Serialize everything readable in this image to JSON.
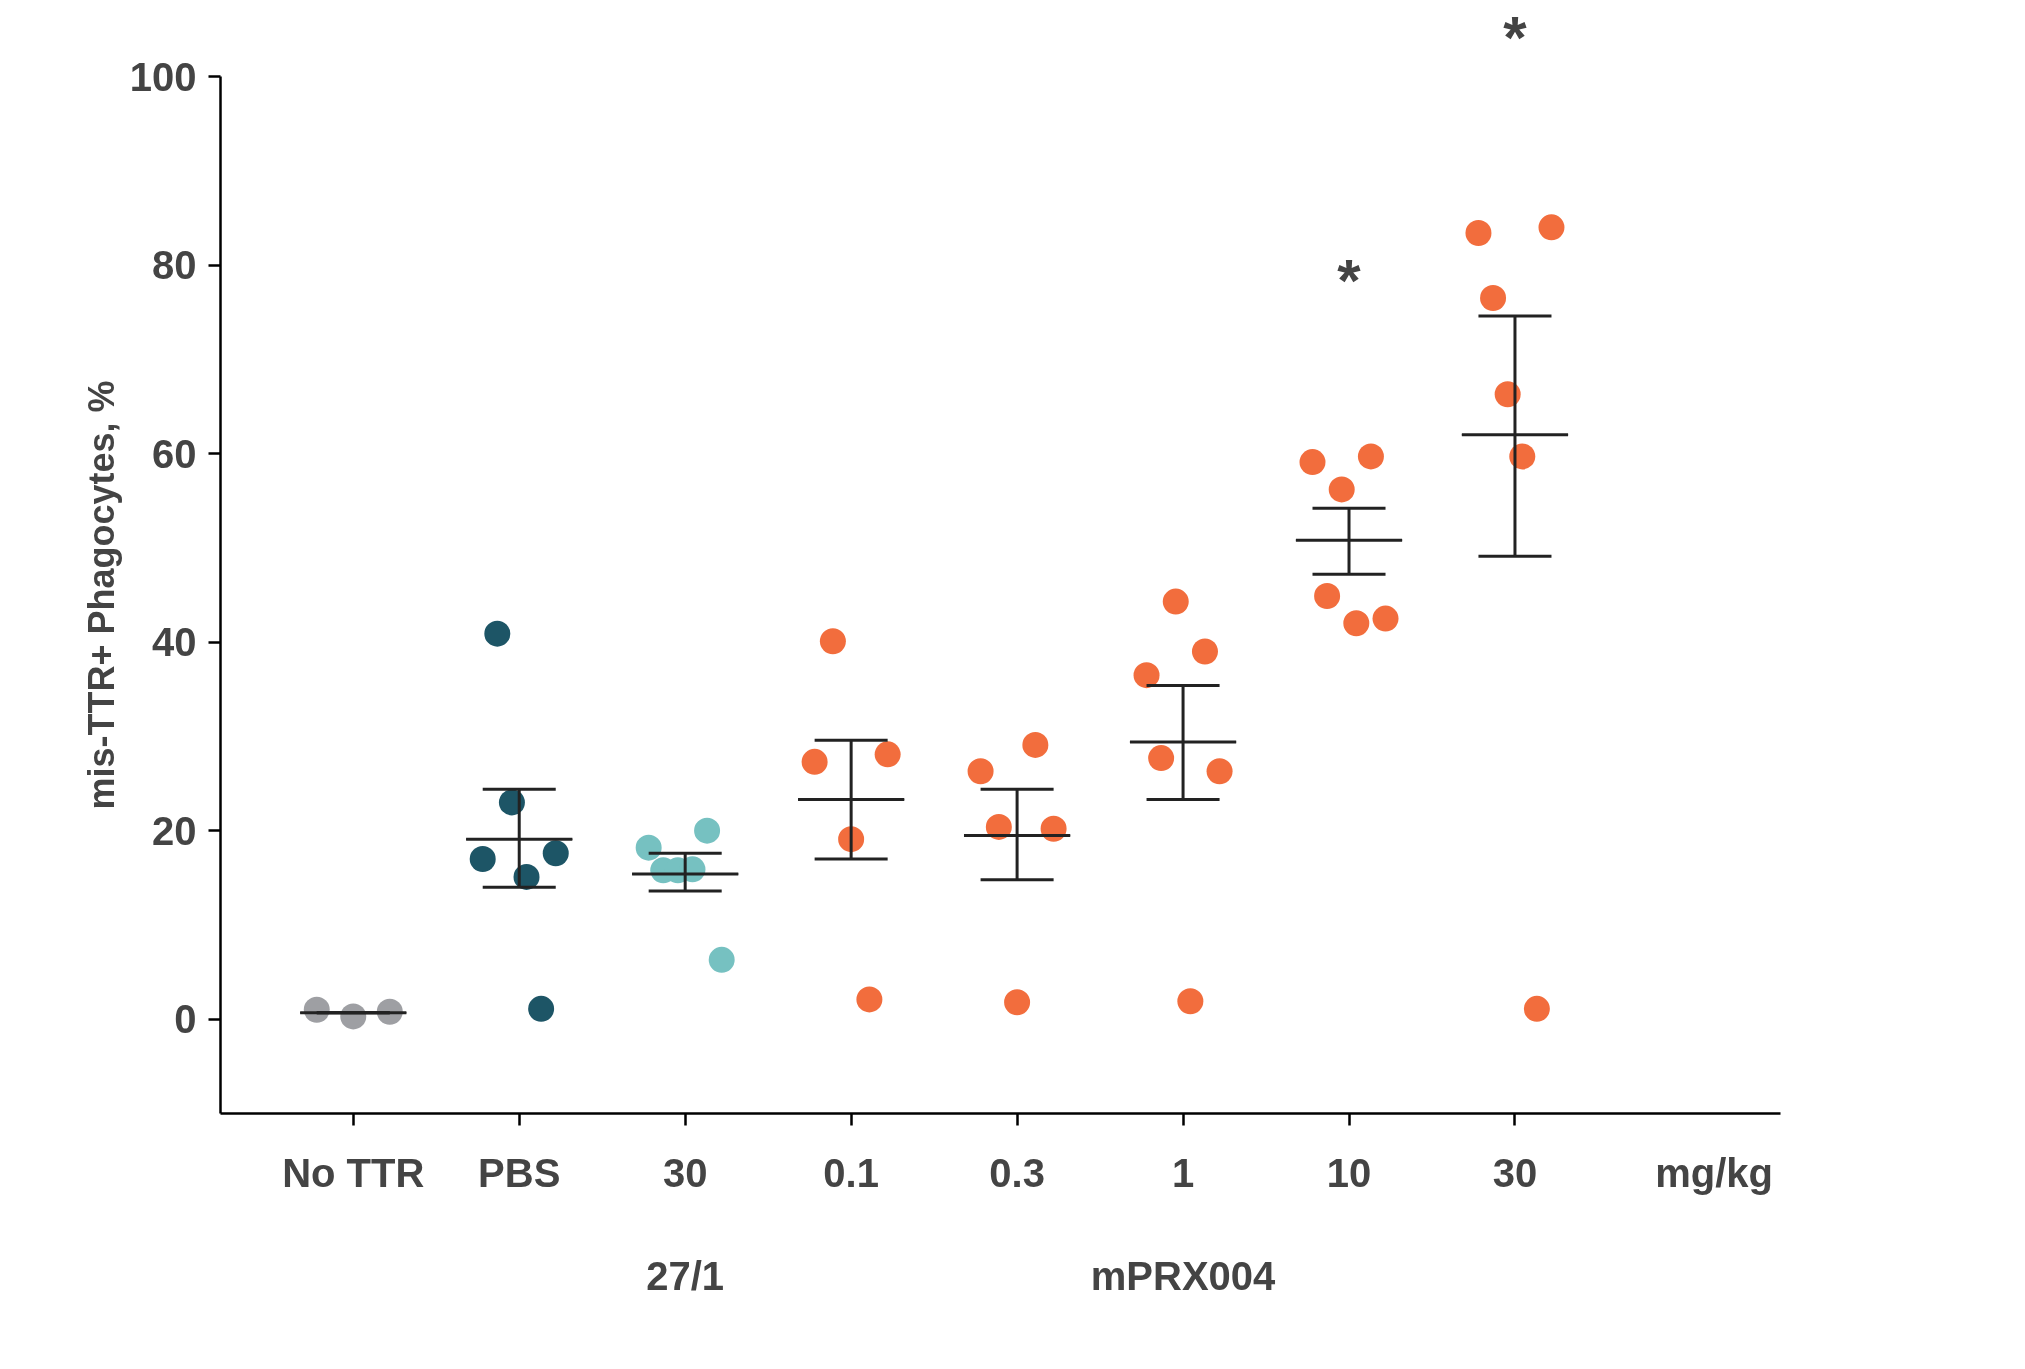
{
  "chart_data": {
    "type": "scatter",
    "ylabel": "mis-TTR+ Phagocytes, %",
    "categories": [
      "No TTR",
      "PBS",
      "30",
      "0.1",
      "0.3",
      "1",
      "10",
      "30"
    ],
    "ylim": [
      -10,
      100
    ],
    "yticks": [
      0,
      20,
      40,
      60,
      80,
      100
    ],
    "grid": false,
    "legend": false,
    "marker": "circle",
    "series": [
      {
        "colors": [
          "#9e9fa3",
          "#1d5566",
          "#76c1c1",
          "#f26d3d",
          "#f26d3d",
          "#f26d3d",
          "#f26d3d",
          "#f26d3d"
        ],
        "values": [
          1.0,
          17.0,
          18.2,
          27.3,
          26.3,
          36.5,
          59.1,
          83.4
        ]
      },
      {
        "colors": [
          "#9e9fa3",
          "#1d5566",
          "#76c1c1",
          "#f26d3d",
          "#f26d3d",
          "#f26d3d",
          "#f26d3d",
          "#f26d3d"
        ],
        "values": [
          0.3,
          40.9,
          15.8,
          40.1,
          20.4,
          27.7,
          44.9,
          76.5
        ]
      },
      {
        "colors": [
          "#9e9fa3",
          "#1d5566",
          "#76c1c1",
          "#f26d3d",
          "#f26d3d",
          "#f26d3d",
          "#f26d3d",
          "#f26d3d"
        ],
        "values": [
          0.8,
          23.0,
          15.8,
          19.1,
          1.8,
          44.3,
          56.2,
          66.3
        ]
      },
      {
        "colors": [
          "#9e9fa3",
          "#1d5566",
          "#76c1c1",
          "#f26d3d",
          "#f26d3d",
          "#f26d3d",
          "#f26d3d",
          "#f26d3d"
        ],
        "values": [
          null,
          15.1,
          15.9,
          2.1,
          29.1,
          1.9,
          42.0,
          59.7
        ]
      },
      {
        "colors": [
          "#9e9fa3",
          "#1d5566",
          "#76c1c1",
          "#f26d3d",
          "#f26d3d",
          "#f26d3d",
          "#f26d3d",
          "#f26d3d"
        ],
        "values": [
          null,
          1.1,
          20.0,
          28.1,
          20.2,
          39.0,
          59.7,
          1.1
        ]
      },
      {
        "colors": [
          "#9e9fa3",
          "#1d5566",
          "#76c1c1",
          "#f26d3d",
          "#f26d3d",
          "#f26d3d",
          "#f26d3d",
          "#f26d3d"
        ],
        "values": [
          null,
          17.6,
          6.3,
          null,
          null,
          26.3,
          42.5,
          84.0
        ]
      },
      {
        "type": "box",
        "color": "#222222",
        "boxes": [
          {
            "low": 0.7,
            "q1": 0.7,
            "median": 0.7,
            "q3": 0.7,
            "high": 0.7
          },
          {
            "low": 14.0,
            "q1": 19.1,
            "median": 19.1,
            "q3": 19.1,
            "high": 24.4
          },
          {
            "low": 13.6,
            "q1": 15.4,
            "median": 15.4,
            "q3": 15.4,
            "high": 17.6
          },
          {
            "low": 17.0,
            "q1": 23.3,
            "median": 23.3,
            "q3": 23.3,
            "high": 29.6
          },
          {
            "low": 14.8,
            "q1": 19.5,
            "median": 19.5,
            "q3": 19.5,
            "high": 24.4
          },
          {
            "low": 23.3,
            "q1": 29.4,
            "median": 29.4,
            "q3": 29.4,
            "high": 35.4
          },
          {
            "low": 47.2,
            "q1": 50.8,
            "median": 50.8,
            "q3": 50.8,
            "high": 54.2
          },
          {
            "low": 49.1,
            "q1": 62.0,
            "median": 62.0,
            "q3": 62.0,
            "high": 74.6
          }
        ]
      }
    ],
    "annotations": [
      "*",
      "*",
      "mg/kg",
      "27/1",
      "mPRX004"
    ]
  }
}
